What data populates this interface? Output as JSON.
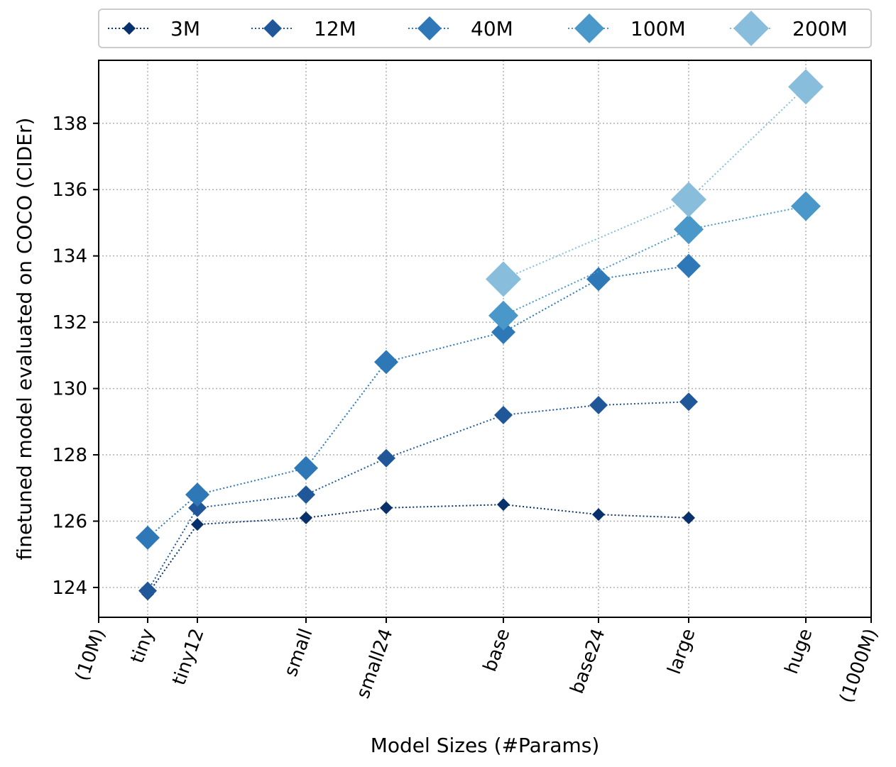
{
  "chart_data": {
    "type": "line",
    "xlabel": "Model Sizes (#Params)",
    "ylabel": "finetuned model evaluated on COCO (CIDEr)",
    "x_scale": "log",
    "x_axis_tick_labels": [
      "(10M)",
      "tiny",
      "tiny12",
      "small",
      "small24",
      "base",
      "base24",
      "large",
      "huge",
      "(1000M)"
    ],
    "y_ticks": [
      124,
      126,
      128,
      130,
      132,
      134,
      136,
      138
    ],
    "ylim": [
      123.1,
      139.9
    ],
    "grid": true,
    "legend_position": "top",
    "categories": [
      "tiny",
      "tiny12",
      "small",
      "small24",
      "base",
      "base24",
      "large",
      "huge"
    ],
    "series": [
      {
        "name": "3M",
        "color": "#08306b",
        "values": [
          123.8,
          125.9,
          126.1,
          126.4,
          126.5,
          126.2,
          126.1,
          null
        ]
      },
      {
        "name": "12M",
        "color": "#1f5799",
        "values": [
          123.9,
          126.4,
          126.8,
          127.9,
          129.2,
          129.5,
          129.6,
          null
        ]
      },
      {
        "name": "40M",
        "color": "#2e78b7",
        "values": [
          125.5,
          126.8,
          127.6,
          130.8,
          131.7,
          133.3,
          133.7,
          null
        ]
      },
      {
        "name": "100M",
        "color": "#4a98c9",
        "values": [
          null,
          null,
          null,
          null,
          132.2,
          null,
          134.8,
          135.5
        ]
      },
      {
        "name": "200M",
        "color": "#88bedc",
        "values": [
          null,
          null,
          null,
          null,
          133.3,
          null,
          135.7,
          139.1
        ]
      }
    ]
  }
}
